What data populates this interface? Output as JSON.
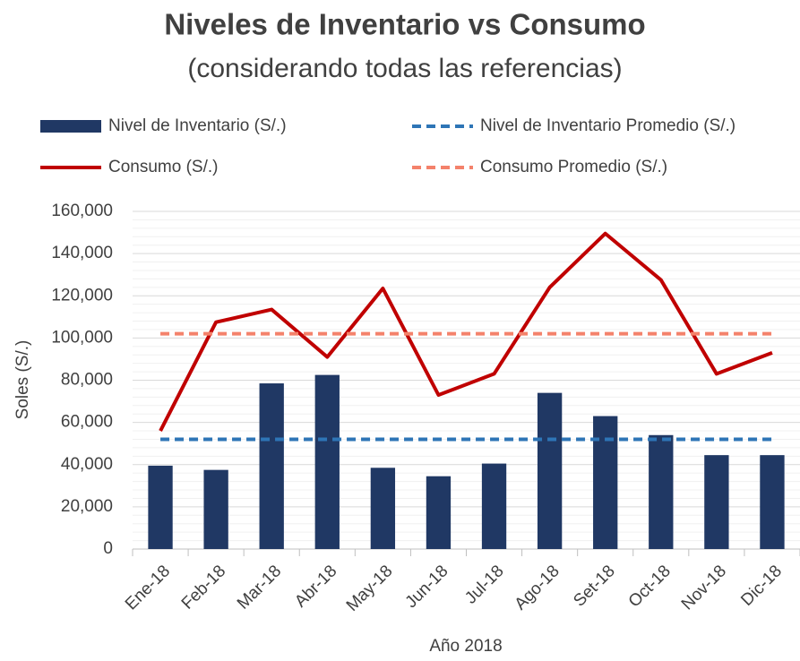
{
  "chart_data": {
    "type": "combo",
    "title": "Niveles de Inventario vs Consumo",
    "subtitle": "(considerando todas las referencias)",
    "x_label": "Año 2018",
    "y_label": "Soles (S/.)",
    "categories": [
      "Ene-18",
      "Feb-18",
      "Mar-18",
      "Abr-18",
      "May-18",
      "Jun-18",
      "Jul-18",
      "Ago-18",
      "Set-18",
      "Oct-18",
      "Nov-18",
      "Dic-18"
    ],
    "series": [
      {
        "name": "Nivel de Inventario (S/.)",
        "type": "bar",
        "color": "#203864",
        "values": [
          39500,
          37500,
          78500,
          82500,
          38500,
          34500,
          40500,
          74000,
          63000,
          54000,
          44500,
          44500
        ]
      },
      {
        "name": "Nivel de Inventario Promedio (S/.)",
        "type": "line",
        "dashed": true,
        "color": "#2e75b6",
        "values": [
          52000,
          52000,
          52000,
          52000,
          52000,
          52000,
          52000,
          52000,
          52000,
          52000,
          52000,
          52000
        ]
      },
      {
        "name": "Consumo (S/.)",
        "type": "line",
        "color": "#c00000",
        "values": [
          56000,
          107500,
          113500,
          91000,
          123500,
          73000,
          83000,
          124000,
          149500,
          127500,
          83000,
          93000
        ]
      },
      {
        "name": "Consumo Promedio (S/.)",
        "type": "line",
        "dashed": true,
        "color": "#f4826b",
        "values": [
          102000,
          102000,
          102000,
          102000,
          102000,
          102000,
          102000,
          102000,
          102000,
          102000,
          102000,
          102000
        ]
      }
    ],
    "ylim": [
      0,
      160000
    ],
    "yticks": [
      0,
      {
        "value": 20000,
        "label": "20,000"
      },
      {
        "value": 40000,
        "label": "40,000"
      },
      {
        "value": 60000,
        "label": "60,000"
      },
      {
        "value": 80000,
        "label": "80,000"
      },
      {
        "value": 100000,
        "label": "100,000"
      },
      {
        "value": 120000,
        "label": "120,000"
      },
      {
        "value": 140000,
        "label": "140,000"
      },
      {
        "value": 160000,
        "label": "160,000"
      }
    ],
    "grid": true
  }
}
